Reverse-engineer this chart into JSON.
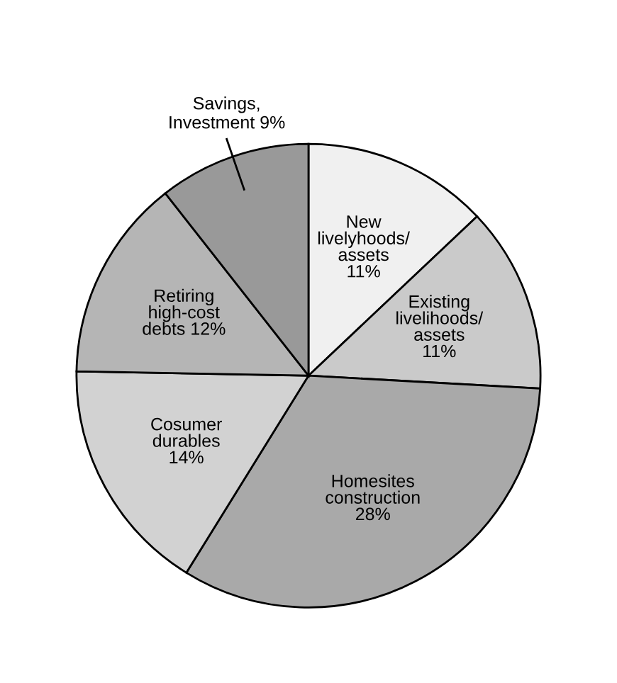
{
  "chart_data": {
    "type": "pie",
    "categories": [
      "New\nlivelyhoods/\nassets\n11%",
      "Existing\nlivelihoods/\nassets\n11%",
      "Homesites\nconstruction\n28%",
      "Cosumer\ndurables\n14%",
      "Retiring\nhigh-cost\ndebts 12%",
      "Savings,\nInvestment 9%"
    ],
    "values": [
      11,
      11,
      28,
      14,
      12,
      9
    ],
    "colors": [
      "#f0f0f0",
      "#cacaca",
      "#a9a9a9",
      "#d2d2d2",
      "#b5b5b5",
      "#999999"
    ]
  }
}
